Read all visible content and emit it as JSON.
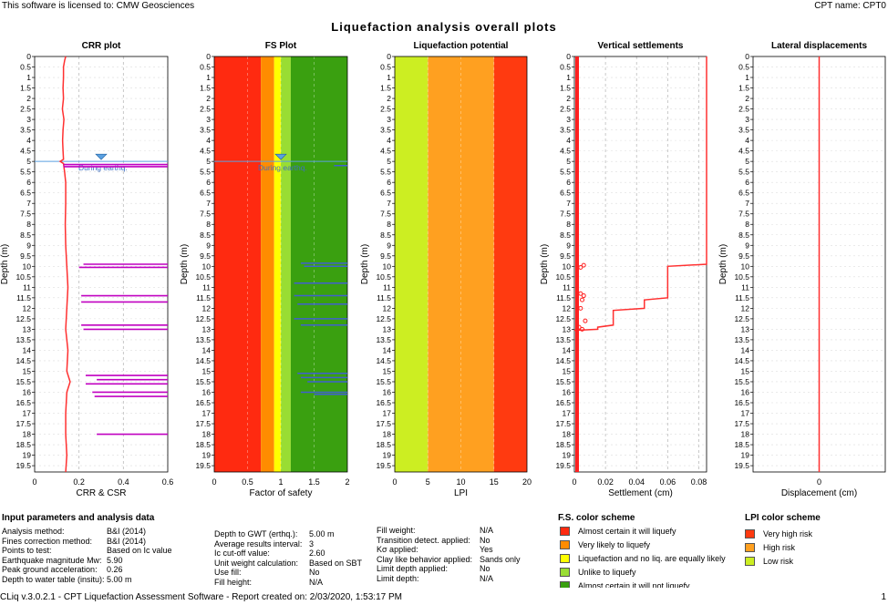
{
  "header": {
    "license": "This software is licensed to: CMW Geosciences",
    "cpt_name": "CPT name: CPT0"
  },
  "main_title": "Liquefaction analysis overall plots",
  "depth_ticks": [
    "0",
    "0.5",
    "1",
    "1.5",
    "2",
    "2.5",
    "3",
    "3.5",
    "4",
    "4.5",
    "5",
    "5.5",
    "6",
    "6.5",
    "7",
    "7.5",
    "8",
    "8.5",
    "9",
    "9.5",
    "10",
    "10.5",
    "11",
    "11.5",
    "12",
    "12.5",
    "13",
    "13.5",
    "14",
    "14.5",
    "15",
    "15.5",
    "16",
    "16.5",
    "17",
    "17.5",
    "18",
    "18.5",
    "19",
    "19.5"
  ],
  "depth_axis_label": "Depth (m)",
  "water_level_label": "During earthq.",
  "chart_data": [
    {
      "type": "line",
      "title": "CRR plot",
      "xlabel": "CRR & CSR",
      "ylabel": "Depth (m)",
      "xlim": [
        0,
        0.6
      ],
      "ylim": [
        0,
        19.8
      ],
      "xticks": [
        "0",
        "0.2",
        "0.4",
        "0.6"
      ],
      "series": [
        {
          "name": "CRR",
          "color": "#ff3030",
          "points": [
            [
              0.14,
              0
            ],
            [
              0.135,
              0.2
            ],
            [
              0.13,
              0.5
            ],
            [
              0.13,
              1
            ],
            [
              0.128,
              1.5
            ],
            [
              0.13,
              2
            ],
            [
              0.125,
              2.5
            ],
            [
              0.132,
              3
            ],
            [
              0.128,
              3.5
            ],
            [
              0.126,
              4
            ],
            [
              0.128,
              4.5
            ],
            [
              0.13,
              4.9
            ],
            [
              0.115,
              5.0
            ],
            [
              0.13,
              5.1
            ],
            [
              0.135,
              5.5
            ],
            [
              0.14,
              6
            ],
            [
              0.14,
              7
            ],
            [
              0.138,
              8
            ],
            [
              0.14,
              9
            ],
            [
              0.145,
              10
            ],
            [
              0.15,
              11
            ],
            [
              0.145,
              12
            ],
            [
              0.14,
              13
            ],
            [
              0.15,
              14
            ],
            [
              0.145,
              15
            ],
            [
              0.16,
              15.5
            ],
            [
              0.145,
              16
            ],
            [
              0.14,
              17
            ],
            [
              0.14,
              18
            ],
            [
              0.145,
              19
            ],
            [
              0.14,
              19.8
            ]
          ]
        },
        {
          "name": "CSR",
          "color": "#c000c0",
          "segments": [
            [
              0.13,
              5.15,
              0.6
            ],
            [
              0.13,
              5.25,
              0.6
            ],
            [
              0.22,
              9.9,
              0.6
            ],
            [
              0.2,
              10.05,
              0.6
            ],
            [
              0.21,
              11.4,
              0.6
            ],
            [
              0.21,
              11.7,
              0.6
            ],
            [
              0.21,
              12.8,
              0.6
            ],
            [
              0.22,
              13.0,
              0.6
            ],
            [
              0.23,
              15.2,
              0.6
            ],
            [
              0.28,
              15.4,
              0.6
            ],
            [
              0.23,
              15.6,
              0.6
            ],
            [
              0.26,
              16.0,
              0.6
            ],
            [
              0.27,
              16.2,
              0.6
            ],
            [
              0.28,
              18.0,
              0.6
            ]
          ]
        }
      ],
      "water_depth": 5.0
    },
    {
      "type": "bar",
      "title": "FS Plot",
      "xlabel": "Factor of safety",
      "ylabel": "Depth (m)",
      "xlim": [
        0,
        2
      ],
      "xticks": [
        "0",
        "0.5",
        "1",
        "1.5",
        "2"
      ],
      "bands": [
        {
          "from": 0,
          "to": 0.7,
          "color": "#ff2a10"
        },
        {
          "from": 0.7,
          "to": 0.9,
          "color": "#ff8c00"
        },
        {
          "from": 0.9,
          "to": 1.0,
          "color": "#ffff00"
        },
        {
          "from": 1.0,
          "to": 1.15,
          "color": "#99dd33"
        },
        {
          "from": 1.15,
          "to": 2.0,
          "color": "#3aa010"
        }
      ],
      "fs_segments": [
        [
          1.8,
          5.2,
          2.0
        ],
        [
          1.3,
          9.85,
          2.0
        ],
        [
          1.35,
          10.0,
          2.0
        ],
        [
          1.2,
          10.8,
          2.0
        ],
        [
          1.2,
          11.4,
          2.0
        ],
        [
          1.25,
          11.8,
          2.0
        ],
        [
          1.2,
          12.5,
          2.0
        ],
        [
          1.3,
          12.8,
          2.0
        ],
        [
          1.25,
          15.1,
          2.0
        ],
        [
          1.3,
          15.3,
          2.0
        ],
        [
          1.4,
          15.5,
          2.0
        ],
        [
          1.3,
          16.0,
          2.0
        ],
        [
          1.5,
          16.1,
          2.0
        ]
      ],
      "water_depth": 5.0
    },
    {
      "type": "bar",
      "title": "Liquefaction potential",
      "xlabel": "LPI",
      "ylabel": "Depth (m)",
      "xlim": [
        0,
        20
      ],
      "xticks": [
        "0",
        "5",
        "10",
        "15",
        "20"
      ],
      "bands": [
        {
          "from": 0,
          "to": 5,
          "color": "#ccee22"
        },
        {
          "from": 5,
          "to": 15,
          "color": "#ffa020"
        },
        {
          "from": 15,
          "to": 20,
          "color": "#ff3a10"
        }
      ]
    },
    {
      "type": "line",
      "title": "Vertical settlements",
      "xlabel": "Settlement (cm)",
      "ylabel": "Depth (m)",
      "xlim": [
        0,
        0.085
      ],
      "xticks": [
        "0",
        "0.02",
        "0.04",
        "0.06",
        "0.08"
      ],
      "xtick_values": [
        0,
        0.02,
        0.04,
        0.06,
        0.08
      ],
      "series": [
        {
          "name": "Settlement",
          "color": "#ff3030",
          "points": [
            [
              0.085,
              0
            ],
            [
              0.085,
              9.9
            ],
            [
              0.06,
              10.0
            ],
            [
              0.06,
              11.5
            ],
            [
              0.045,
              11.6
            ],
            [
              0.045,
              12.0
            ],
            [
              0.025,
              12.1
            ],
            [
              0.025,
              12.8
            ],
            [
              0.015,
              12.9
            ],
            [
              0.015,
              13.0
            ],
            [
              0.0,
              13.05
            ]
          ]
        }
      ],
      "markers": [
        [
          0.006,
          9.95
        ],
        [
          0.004,
          10.05
        ],
        [
          0.004,
          11.3
        ],
        [
          0.006,
          11.4
        ],
        [
          0.005,
          11.6
        ],
        [
          0.004,
          12.0
        ],
        [
          0.007,
          12.6
        ],
        [
          0.003,
          12.9
        ],
        [
          0.005,
          13.0
        ]
      ]
    },
    {
      "type": "line",
      "title": "Lateral displacements",
      "xlabel": "Displacement (cm)",
      "ylabel": "Depth (m)",
      "xlim": [
        -1,
        1
      ],
      "xticks": [
        "0"
      ],
      "xtick_values": [
        0
      ],
      "series": [
        {
          "name": "Displacement",
          "color": "#ff3030",
          "points": [
            [
              0,
              0
            ],
            [
              0,
              19.8
            ]
          ]
        }
      ]
    }
  ],
  "params": {
    "title": "Input parameters and analysis data",
    "col1": [
      {
        "label": "Analysis method:",
        "value": "B&I (2014)"
      },
      {
        "label": "Fines correction method:",
        "value": "B&I (2014)"
      },
      {
        "label": "Points to test:",
        "value": "Based on Ic value"
      },
      {
        "label": "Earthquake magnitude Mw:",
        "value": "5.90"
      },
      {
        "label": "Peak ground acceleration:",
        "value": "0.26"
      },
      {
        "label": "Depth to water table (insitu):",
        "value": "5.00 m"
      }
    ],
    "col2": [
      {
        "label": "Depth to GWT (erthq.):",
        "value": "5.00 m"
      },
      {
        "label": "Average results interval:",
        "value": "3"
      },
      {
        "label": "Ic cut-off value:",
        "value": "2.60"
      },
      {
        "label": "Unit weight calculation:",
        "value": "Based on SBT"
      },
      {
        "label": "Use fill:",
        "value": "No"
      },
      {
        "label": "Fill height:",
        "value": "N/A"
      }
    ],
    "col3": [
      {
        "label": "Fill weight:",
        "value": "N/A"
      },
      {
        "label": "Transition detect. applied:",
        "value": "No"
      },
      {
        "label": "Kσ applied:",
        "value": "Yes"
      },
      {
        "label": "Clay like behavior applied:",
        "value": "Sands only"
      },
      {
        "label": "Limit depth applied:",
        "value": "No"
      },
      {
        "label": "Limit depth:",
        "value": "N/A"
      }
    ]
  },
  "fs_scheme": {
    "title": "F.S. color scheme",
    "items": [
      {
        "label": "Almost certain it will liquefy",
        "color": "#ff2a10"
      },
      {
        "label": "Very likely to liquefy",
        "color": "#ff8c00"
      },
      {
        "label": "Liquefaction and no liq. are equally likely",
        "color": "#ffff00"
      },
      {
        "label": "Unlike to liquefy",
        "color": "#99dd33"
      },
      {
        "label": "Almost certain it will not liquefy",
        "color": "#3aa010"
      }
    ]
  },
  "lpi_scheme": {
    "title": "LPI color scheme",
    "items": [
      {
        "label": "Very high risk",
        "color": "#ff3a10"
      },
      {
        "label": "High risk",
        "color": "#ffa020"
      },
      {
        "label": "Low risk",
        "color": "#ccee22"
      }
    ]
  },
  "footer": "CLiq v.3.0.2.1 - CPT Liquefaction Assessment Software - Report created on: 2/03/2020, 1:53:17 PM",
  "page_number": "1"
}
